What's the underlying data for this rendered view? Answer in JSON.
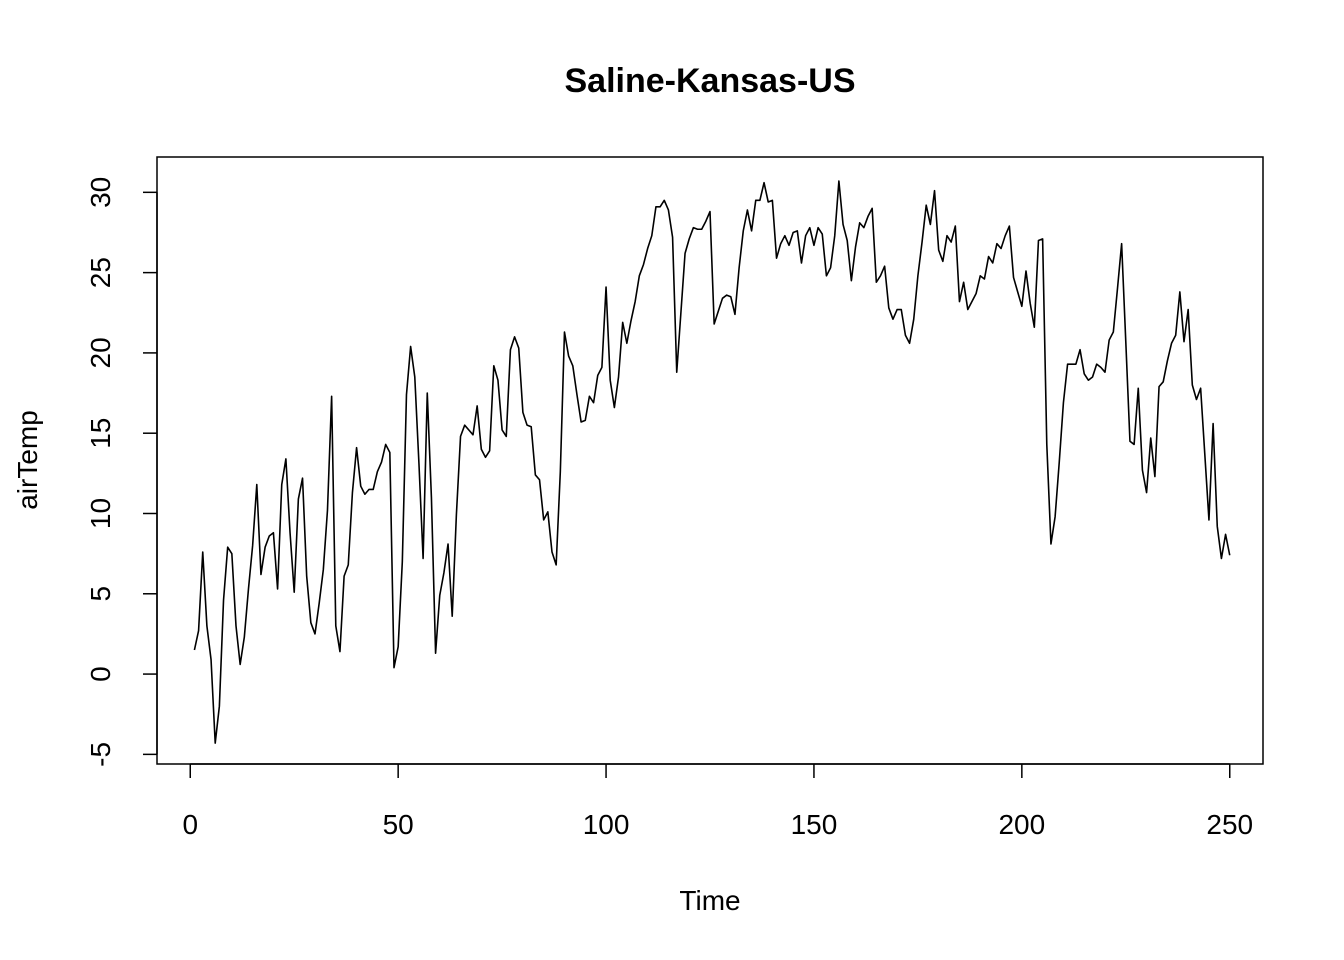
{
  "chart_data": {
    "type": "line",
    "title": "Saline-Kansas-US",
    "xlabel": "Time",
    "ylabel": "airTemp",
    "xlim": [
      -8,
      258
    ],
    "ylim": [
      -5.6,
      32.2
    ],
    "x_ticks": [
      0,
      50,
      100,
      150,
      200,
      250
    ],
    "y_ticks": [
      -5,
      0,
      5,
      10,
      15,
      20,
      25,
      30
    ],
    "grid": false,
    "legend": "none",
    "line_color": "#000000",
    "series": [
      {
        "x_start": 1,
        "values": [
          1.5,
          2.7,
          7.6,
          3.0,
          0.9,
          -4.3,
          -2.0,
          4.6,
          7.9,
          7.5,
          3.0,
          0.6,
          2.3,
          5.3,
          8.0,
          11.8,
          6.2,
          7.9,
          8.6,
          8.8,
          5.3,
          11.8,
          13.4,
          8.8,
          5.1,
          10.9,
          12.2,
          6.1,
          3.2,
          2.5,
          4.4,
          6.5,
          10.2,
          17.3,
          3.0,
          1.4,
          6.1,
          6.8,
          11.3,
          14.1,
          11.7,
          11.2,
          11.5,
          11.5,
          12.6,
          13.2,
          14.3,
          13.8,
          0.4,
          1.7,
          7.0,
          17.4,
          20.4,
          18.5,
          13.1,
          7.2,
          17.5,
          11.0,
          1.3,
          4.9,
          6.3,
          8.1,
          3.6,
          9.9,
          14.8,
          15.5,
          15.2,
          14.9,
          16.7,
          14.0,
          13.5,
          13.9,
          19.2,
          18.3,
          15.2,
          14.8,
          20.2,
          21.0,
          20.3,
          16.3,
          15.5,
          15.4,
          12.4,
          12.1,
          9.6,
          10.1,
          7.6,
          6.8,
          12.6,
          21.3,
          19.8,
          19.2,
          17.4,
          15.7,
          15.8,
          17.3,
          16.9,
          18.6,
          19.1,
          24.1,
          18.3,
          16.6,
          18.5,
          21.9,
          20.6,
          22.0,
          23.2,
          24.8,
          25.5,
          26.5,
          27.3,
          29.1,
          29.1,
          29.5,
          28.9,
          27.2,
          18.8,
          22.5,
          26.2,
          27.1,
          27.8,
          27.7,
          27.7,
          28.2,
          28.8,
          21.8,
          22.6,
          23.4,
          23.6,
          23.5,
          22.4,
          25.3,
          27.6,
          28.9,
          27.6,
          29.5,
          29.5,
          30.6,
          29.4,
          29.5,
          25.9,
          26.8,
          27.3,
          26.7,
          27.5,
          27.6,
          25.6,
          27.3,
          27.8,
          26.7,
          27.8,
          27.4,
          24.8,
          25.3,
          27.3,
          30.7,
          28.0,
          27.0,
          24.5,
          26.6,
          28.1,
          27.8,
          28.5,
          29.0,
          24.4,
          24.8,
          25.4,
          22.8,
          22.1,
          22.7,
          22.7,
          21.1,
          20.6,
          22.1,
          24.8,
          26.9,
          29.2,
          28.0,
          30.1,
          26.4,
          25.7,
          27.3,
          26.9,
          27.9,
          23.2,
          24.4,
          22.7,
          23.2,
          23.7,
          24.8,
          24.6,
          26.0,
          25.6,
          26.8,
          26.5,
          27.3,
          27.9,
          24.7,
          23.8,
          22.9,
          25.1,
          23.1,
          21.6,
          27.0,
          27.1,
          14.3,
          8.1,
          9.8,
          13.2,
          16.9,
          19.3,
          19.3,
          19.3,
          20.2,
          18.7,
          18.3,
          18.5,
          19.3,
          19.1,
          18.8,
          20.8,
          21.3,
          24.0,
          26.8,
          20.7,
          14.5,
          14.3,
          17.8,
          12.7,
          11.3,
          14.7,
          12.3,
          17.9,
          18.2,
          19.5,
          20.6,
          21.1,
          23.8,
          20.7,
          22.7,
          18.0,
          17.1,
          17.8,
          13.7,
          9.6,
          15.6,
          9.2,
          7.2,
          8.7,
          7.4
        ]
      }
    ]
  }
}
